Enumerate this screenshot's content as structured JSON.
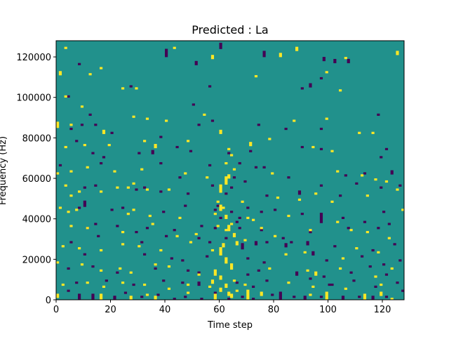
{
  "chart_data": {
    "type": "heatmap",
    "title": "Predicted : La",
    "xlabel": "Time step",
    "ylabel": "Frequency (Hz)",
    "xlim": [
      0,
      128
    ],
    "ylim": [
      0,
      128000
    ],
    "xticks": [
      0,
      20,
      40,
      60,
      80,
      100,
      120
    ],
    "yticks": [
      0,
      20000,
      40000,
      60000,
      80000,
      100000,
      120000
    ],
    "grid": false,
    "legend": "none",
    "rows": 128,
    "cols": 128,
    "colors": {
      "background_value": "#21918c",
      "low_value": "#440154",
      "high_value": "#fde725"
    },
    "low_cells": [
      [
        40,
        120,
        4
      ],
      [
        60,
        124,
        3
      ],
      [
        76,
        120,
        3
      ],
      [
        98,
        118,
        2
      ],
      [
        51,
        116,
        2
      ],
      [
        8,
        116,
        1
      ],
      [
        102,
        117,
        2
      ],
      [
        107,
        117,
        2
      ],
      [
        12,
        91,
        1
      ],
      [
        44,
        75,
        1
      ],
      [
        9,
        86,
        1
      ],
      [
        57,
        88,
        1
      ],
      [
        97,
        109,
        1
      ],
      [
        90,
        104,
        1
      ],
      [
        93,
        105,
        2
      ],
      [
        118,
        91,
        1
      ],
      [
        5,
        84,
        1
      ],
      [
        14,
        86,
        1
      ],
      [
        20,
        82,
        1
      ],
      [
        38,
        80,
        1
      ],
      [
        52,
        86,
        1
      ],
      [
        74,
        86,
        1
      ],
      [
        84,
        84,
        1
      ],
      [
        97,
        84,
        1
      ],
      [
        7,
        78,
        1
      ],
      [
        13,
        72,
        1
      ],
      [
        17,
        70,
        1
      ],
      [
        30,
        72,
        1
      ],
      [
        35,
        72,
        2
      ],
      [
        49,
        73,
        1
      ],
      [
        63,
        72,
        1
      ],
      [
        71,
        73,
        1
      ],
      [
        90,
        75,
        1
      ],
      [
        97,
        74,
        1
      ],
      [
        121,
        74,
        1
      ],
      [
        119,
        70,
        1
      ],
      [
        1,
        66,
        1
      ],
      [
        16,
        67,
        1
      ],
      [
        38,
        67,
        1
      ],
      [
        56,
        66,
        1
      ],
      [
        73,
        65,
        1
      ],
      [
        67,
        67,
        1
      ],
      [
        76,
        65,
        1
      ],
      [
        106,
        61,
        1
      ],
      [
        113,
        62,
        1
      ],
      [
        123,
        62,
        2
      ],
      [
        10,
        55,
        1
      ],
      [
        14,
        56,
        1
      ],
      [
        32,
        55,
        1
      ],
      [
        29,
        54,
        1
      ],
      [
        38,
        53,
        1
      ],
      [
        48,
        52,
        1
      ],
      [
        57,
        56,
        1
      ],
      [
        64,
        55,
        1
      ],
      [
        77,
        51,
        1
      ],
      [
        89,
        52,
        2
      ],
      [
        97,
        56,
        1
      ],
      [
        104,
        51,
        1
      ],
      [
        119,
        55,
        1
      ],
      [
        126,
        56,
        1
      ],
      [
        8,
        45,
        1
      ],
      [
        10,
        46,
        3
      ],
      [
        24,
        45,
        1
      ],
      [
        20,
        44,
        1
      ],
      [
        39,
        43,
        1
      ],
      [
        47,
        46,
        1
      ],
      [
        59,
        46,
        1
      ],
      [
        64,
        43,
        1
      ],
      [
        70,
        45,
        1
      ],
      [
        75,
        43,
        1
      ],
      [
        80,
        44,
        1
      ],
      [
        90,
        42,
        1
      ],
      [
        97,
        38,
        5
      ],
      [
        105,
        40,
        1
      ],
      [
        113,
        38,
        1
      ],
      [
        120,
        43,
        1
      ],
      [
        11,
        35,
        1
      ],
      [
        14,
        37,
        1
      ],
      [
        22,
        36,
        1
      ],
      [
        29,
        33,
        1
      ],
      [
        33,
        35,
        1
      ],
      [
        43,
        34,
        1
      ],
      [
        53,
        36,
        1
      ],
      [
        58,
        35,
        1
      ],
      [
        67,
        35,
        1
      ],
      [
        75,
        34,
        1
      ],
      [
        93,
        33,
        2
      ],
      [
        107,
        35,
        1
      ],
      [
        118,
        35,
        1
      ],
      [
        122,
        37,
        1
      ],
      [
        5,
        28,
        1
      ],
      [
        15,
        31,
        1
      ],
      [
        31,
        28,
        1
      ],
      [
        40,
        31,
        1
      ],
      [
        52,
        30,
        1
      ],
      [
        56,
        28,
        1
      ],
      [
        62,
        30,
        1
      ],
      [
        68,
        25,
        3
      ],
      [
        73,
        27,
        2
      ],
      [
        77,
        28,
        1
      ],
      [
        84,
        26,
        2
      ],
      [
        92,
        27,
        2
      ],
      [
        102,
        26,
        1
      ],
      [
        116,
        24,
        1
      ],
      [
        124,
        27,
        1
      ],
      [
        10,
        22,
        1
      ],
      [
        32,
        22,
        1
      ],
      [
        42,
        20,
        1
      ],
      [
        46,
        19,
        1
      ],
      [
        55,
        21,
        1
      ],
      [
        70,
        20,
        1
      ],
      [
        76,
        18,
        1
      ],
      [
        94,
        22,
        2
      ],
      [
        99,
        19,
        1
      ],
      [
        112,
        21,
        1
      ],
      [
        120,
        17,
        1
      ],
      [
        126,
        19,
        1
      ],
      [
        4,
        15,
        1
      ],
      [
        13,
        16,
        1
      ],
      [
        22,
        13,
        1
      ],
      [
        36,
        15,
        1
      ],
      [
        48,
        14,
        1
      ],
      [
        52,
        13,
        1
      ],
      [
        70,
        12,
        1
      ],
      [
        74,
        14,
        1
      ],
      [
        88,
        12,
        2
      ],
      [
        98,
        11,
        1
      ],
      [
        108,
        13,
        1
      ],
      [
        115,
        16,
        1
      ],
      [
        121,
        12,
        1
      ],
      [
        7,
        8,
        1
      ],
      [
        18,
        9,
        1
      ],
      [
        28,
        7,
        1
      ],
      [
        39,
        9,
        1
      ],
      [
        46,
        8,
        1
      ],
      [
        52,
        7,
        2
      ],
      [
        66,
        8,
        1
      ],
      [
        72,
        6,
        1
      ],
      [
        77,
        9,
        1
      ],
      [
        93,
        10,
        1
      ],
      [
        100,
        7,
        1
      ],
      [
        109,
        9,
        1
      ],
      [
        117,
        6,
        1
      ],
      [
        125,
        8,
        1
      ],
      [
        4,
        4,
        1
      ],
      [
        8,
        0,
        3
      ],
      [
        13,
        0,
        3
      ],
      [
        21,
        0,
        2
      ],
      [
        25,
        3,
        1
      ],
      [
        31,
        1,
        1
      ],
      [
        37,
        2,
        1
      ],
      [
        43,
        0,
        1
      ],
      [
        47,
        1,
        1
      ],
      [
        53,
        0,
        1
      ],
      [
        58,
        3,
        1
      ],
      [
        63,
        0,
        1
      ],
      [
        68,
        1,
        1
      ],
      [
        72,
        0,
        1
      ],
      [
        79,
        2,
        1
      ],
      [
        82,
        0,
        4
      ],
      [
        87,
        1,
        1
      ],
      [
        91,
        0,
        2
      ],
      [
        97,
        1,
        1
      ],
      [
        105,
        0,
        2
      ],
      [
        111,
        1,
        1
      ],
      [
        116,
        0,
        2
      ],
      [
        121,
        1,
        1
      ],
      [
        127,
        4,
        1
      ],
      [
        101,
        7,
        1
      ],
      [
        62,
        52,
        1
      ],
      [
        65,
        60,
        1
      ],
      [
        66,
        38,
        1
      ],
      [
        67,
        40,
        1
      ],
      [
        69,
        58,
        1
      ],
      [
        83,
        30,
        1
      ],
      [
        86,
        28,
        1
      ],
      [
        60,
        40,
        1
      ],
      [
        58,
        44,
        1
      ],
      [
        85,
        60,
        1
      ],
      [
        110,
        57,
        1
      ],
      [
        45,
        60,
        1
      ],
      [
        56,
        105,
        1
      ],
      [
        50,
        96,
        1
      ],
      [
        27,
        105,
        1
      ],
      [
        4,
        100,
        1
      ]
    ],
    "high_cells": [
      [
        3,
        124,
        1
      ],
      [
        43,
        124,
        1
      ],
      [
        57,
        119,
        2
      ],
      [
        82,
        120,
        2
      ],
      [
        88,
        123,
        2
      ],
      [
        106,
        119,
        1
      ],
      [
        125,
        121,
        2
      ],
      [
        1,
        111,
        2
      ],
      [
        12,
        111,
        1
      ],
      [
        16,
        114,
        1
      ],
      [
        24,
        104,
        1
      ],
      [
        29,
        104,
        1
      ],
      [
        73,
        110,
        1
      ],
      [
        99,
        112,
        1
      ],
      [
        104,
        103,
        1
      ],
      [
        3,
        100,
        1
      ],
      [
        9,
        95,
        1
      ],
      [
        0,
        85,
        3
      ],
      [
        5,
        86,
        1
      ],
      [
        17,
        82,
        2
      ],
      [
        28,
        90,
        1
      ],
      [
        33,
        89,
        1
      ],
      [
        40,
        88,
        1
      ],
      [
        54,
        91,
        1
      ],
      [
        60,
        82,
        2
      ],
      [
        87,
        88,
        1
      ],
      [
        99,
        89,
        1
      ],
      [
        111,
        82,
        1
      ],
      [
        116,
        82,
        1
      ],
      [
        3,
        75,
        1
      ],
      [
        10,
        76,
        1
      ],
      [
        19,
        76,
        1
      ],
      [
        32,
        78,
        1
      ],
      [
        36,
        75,
        2
      ],
      [
        48,
        78,
        1
      ],
      [
        63,
        74,
        1
      ],
      [
        71,
        76,
        2
      ],
      [
        78,
        79,
        1
      ],
      [
        94,
        75,
        1
      ],
      [
        101,
        73,
        1
      ],
      [
        0,
        62,
        1
      ],
      [
        5,
        63,
        1
      ],
      [
        11,
        65,
        1
      ],
      [
        21,
        63,
        1
      ],
      [
        31,
        64,
        1
      ],
      [
        47,
        62,
        1
      ],
      [
        55,
        60,
        1
      ],
      [
        62,
        67,
        1
      ],
      [
        64,
        71,
        1
      ],
      [
        60,
        53,
        4
      ],
      [
        62,
        57,
        4
      ],
      [
        63,
        60,
        2
      ],
      [
        65,
        64,
        1
      ],
      [
        79,
        62,
        1
      ],
      [
        103,
        63,
        1
      ],
      [
        112,
        61,
        1
      ],
      [
        117,
        59,
        1
      ],
      [
        121,
        58,
        1
      ],
      [
        3,
        56,
        1
      ],
      [
        5,
        51,
        1
      ],
      [
        8,
        53,
        1
      ],
      [
        16,
        53,
        1
      ],
      [
        22,
        55,
        1
      ],
      [
        26,
        55,
        1
      ],
      [
        28,
        57,
        1
      ],
      [
        33,
        54,
        1
      ],
      [
        41,
        54,
        1
      ],
      [
        59,
        48,
        1
      ],
      [
        60,
        44,
        3
      ],
      [
        62,
        40,
        2
      ],
      [
        63,
        34,
        3
      ],
      [
        65,
        31,
        2
      ],
      [
        66,
        27,
        2
      ],
      [
        68,
        48,
        1
      ],
      [
        81,
        50,
        1
      ],
      [
        89,
        49,
        1
      ],
      [
        95,
        52,
        1
      ],
      [
        101,
        48,
        1
      ],
      [
        114,
        51,
        1
      ],
      [
        125,
        54,
        1
      ],
      [
        1,
        45,
        1
      ],
      [
        4,
        43,
        1
      ],
      [
        7,
        44,
        1
      ],
      [
        26,
        42,
        1
      ],
      [
        28,
        44,
        1
      ],
      [
        34,
        41,
        1
      ],
      [
        45,
        40,
        1
      ],
      [
        58,
        42,
        1
      ],
      [
        61,
        45,
        1
      ],
      [
        70,
        40,
        1
      ],
      [
        72,
        39,
        1
      ],
      [
        85,
        41,
        1
      ],
      [
        103,
        38,
        1
      ],
      [
        127,
        44,
        1
      ],
      [
        5,
        36,
        1
      ],
      [
        11,
        35,
        1
      ],
      [
        24,
        33,
        1
      ],
      [
        35,
        37,
        1
      ],
      [
        44,
        31,
        1
      ],
      [
        51,
        32,
        1
      ],
      [
        59,
        36,
        1
      ],
      [
        62,
        34,
        1
      ],
      [
        64,
        37,
        1
      ],
      [
        69,
        29,
        1
      ],
      [
        75,
        35,
        1
      ],
      [
        80,
        31,
        1
      ],
      [
        93,
        34,
        1
      ],
      [
        108,
        34,
        1
      ],
      [
        114,
        33,
        1
      ],
      [
        122,
        30,
        1
      ],
      [
        2,
        26,
        1
      ],
      [
        8,
        25,
        1
      ],
      [
        16,
        24,
        1
      ],
      [
        24,
        27,
        1
      ],
      [
        30,
        26,
        1
      ],
      [
        38,
        24,
        1
      ],
      [
        49,
        28,
        1
      ],
      [
        57,
        24,
        1
      ],
      [
        60,
        22,
        4
      ],
      [
        61,
        26,
        2
      ],
      [
        62,
        18,
        3
      ],
      [
        64,
        15,
        3
      ],
      [
        84,
        22,
        1
      ],
      [
        91,
        23,
        1
      ],
      [
        105,
        20,
        1
      ],
      [
        110,
        25,
        1
      ],
      [
        118,
        23,
        1
      ],
      [
        0,
        18,
        1
      ],
      [
        9,
        17,
        1
      ],
      [
        16,
        14,
        1
      ],
      [
        23,
        15,
        1
      ],
      [
        27,
        13,
        1
      ],
      [
        36,
        17,
        1
      ],
      [
        41,
        16,
        1
      ],
      [
        52,
        12,
        1
      ],
      [
        58,
        12,
        3
      ],
      [
        60,
        10,
        2
      ],
      [
        62,
        6,
        2
      ],
      [
        65,
        9,
        1
      ],
      [
        78,
        15,
        1
      ],
      [
        92,
        14,
        1
      ],
      [
        95,
        12,
        2
      ],
      [
        104,
        15,
        1
      ],
      [
        117,
        11,
        1
      ],
      [
        123,
        15,
        1
      ],
      [
        2,
        7,
        1
      ],
      [
        11,
        8,
        1
      ],
      [
        17,
        6,
        1
      ],
      [
        24,
        8,
        1
      ],
      [
        32,
        7,
        1
      ],
      [
        41,
        5,
        1
      ],
      [
        48,
        7,
        1
      ],
      [
        56,
        6,
        1
      ],
      [
        57,
        8,
        2
      ],
      [
        60,
        4,
        2
      ],
      [
        63,
        2,
        2
      ],
      [
        66,
        4,
        1
      ],
      [
        69,
        7,
        1
      ],
      [
        85,
        8,
        1
      ],
      [
        94,
        6,
        1
      ],
      [
        106,
        5,
        1
      ],
      [
        119,
        7,
        1
      ],
      [
        0,
        1,
        2
      ],
      [
        16,
        0,
        3
      ],
      [
        27,
        0,
        2
      ],
      [
        33,
        2,
        1
      ],
      [
        36,
        0,
        2
      ],
      [
        48,
        3,
        1
      ],
      [
        58,
        0,
        3
      ],
      [
        64,
        1,
        2
      ],
      [
        70,
        0,
        5
      ],
      [
        75,
        2,
        2
      ],
      [
        93,
        2,
        1
      ],
      [
        99,
        0,
        4
      ],
      [
        113,
        0,
        3
      ],
      [
        119,
        2,
        2
      ],
      [
        123,
        0,
        1
      ]
    ]
  }
}
